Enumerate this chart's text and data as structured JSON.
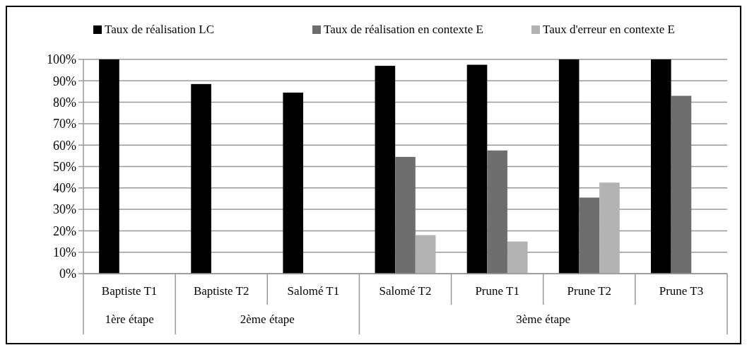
{
  "chart_data": {
    "type": "bar",
    "categories": [
      "Baptiste T1",
      "Baptiste T2",
      "Salomé T1",
      "Salomé T2",
      "Prune T1",
      "Prune T2",
      "Prune T3"
    ],
    "series": [
      {
        "name": "Taux de réalisation LC",
        "color": "#000000",
        "values": [
          100,
          88.5,
          84.5,
          97,
          97.5,
          100,
          100
        ]
      },
      {
        "name": "Taux de réalisation en contexte E",
        "color": "#6e6e6e",
        "values": [
          null,
          null,
          null,
          54.5,
          57.5,
          35.5,
          83
        ]
      },
      {
        "name": "Taux d'erreur en contexte E",
        "color": "#b3b3b3",
        "values": [
          null,
          null,
          null,
          18,
          15,
          42.5,
          null
        ]
      }
    ],
    "ylim": [
      0,
      100
    ],
    "yticks": [
      {
        "value": 0,
        "label": "0%"
      },
      {
        "value": 10,
        "label": "10%"
      },
      {
        "value": 20,
        "label": "20%"
      },
      {
        "value": 30,
        "label": "30%"
      },
      {
        "value": 40,
        "label": "40%"
      },
      {
        "value": 50,
        "label": "50%"
      },
      {
        "value": 60,
        "label": "60%"
      },
      {
        "value": 70,
        "label": "70%"
      },
      {
        "value": 80,
        "label": "80%"
      },
      {
        "value": 90,
        "label": "90%"
      },
      {
        "value": 100,
        "label": "100%"
      }
    ],
    "grid": "y",
    "legend": "top",
    "annotations": [
      "1ère étape",
      "2ème étape",
      "3ème étape"
    ]
  }
}
